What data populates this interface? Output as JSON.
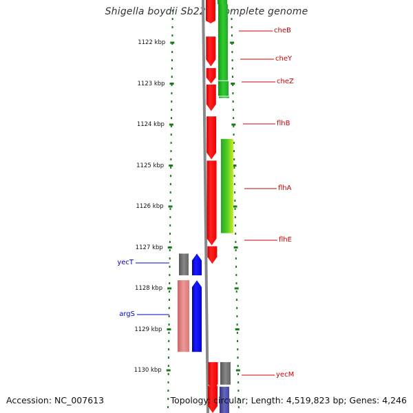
{
  "header": {
    "title": "Shigella boydii Sb227, complete genome"
  },
  "footer": {
    "accession": "Accession: NC_007613",
    "topology": "Topology: circular; Length: 4,519,823 bp; Genes: 4,246"
  },
  "chart_data": {
    "type": "genome_map",
    "axis_unit": "kbp",
    "ticks": [
      {
        "pos": 1122,
        "label": "1122 kbp"
      },
      {
        "pos": 1123,
        "label": "1123 kbp"
      },
      {
        "pos": 1124,
        "label": "1124 kbp"
      },
      {
        "pos": 1125,
        "label": "1125 kbp"
      },
      {
        "pos": 1126,
        "label": "1126 kbp"
      },
      {
        "pos": 1127,
        "label": "1127 kbp"
      },
      {
        "pos": 1128,
        "label": "1128 kbp"
      },
      {
        "pos": 1129,
        "label": "1129 kbp"
      },
      {
        "pos": 1130,
        "label": "1130 kbp"
      }
    ],
    "genes": [
      {
        "name": "cheB",
        "start": 1121.85,
        "end": 1122.58,
        "strand": "reverse"
      },
      {
        "name": "cheY",
        "start": 1122.62,
        "end": 1123.0,
        "strand": "reverse"
      },
      {
        "name": "cheZ",
        "start": 1123.02,
        "end": 1123.67,
        "strand": "reverse"
      },
      {
        "name": "flhB",
        "start": 1123.8,
        "end": 1124.85,
        "strand": "reverse"
      },
      {
        "name": "flhA",
        "start": 1124.88,
        "end": 1126.95,
        "strand": "reverse"
      },
      {
        "name": "flhE",
        "start": 1126.97,
        "end": 1127.4,
        "strand": "reverse"
      },
      {
        "name": "yecT",
        "start": 1127.15,
        "end": 1127.68,
        "strand": "forward"
      },
      {
        "name": "argS",
        "start": 1127.8,
        "end": 1129.55,
        "strand": "forward"
      },
      {
        "name": "yecM",
        "start": 1129.8,
        "end": 1130.5,
        "strand": "reverse"
      }
    ],
    "colors": {
      "cds_reverse": "#ff0000",
      "cds_forward": "#0000ff",
      "homolog_green": "#33cc33",
      "homolog_pink": "#ee8888",
      "homolog_gray": "#777777",
      "homolog_purple": "#5555aa",
      "tick": "#1a7a1a",
      "backbone": "#888888",
      "label_reverse": "#cc0000",
      "label_forward": "#0000cc"
    }
  }
}
